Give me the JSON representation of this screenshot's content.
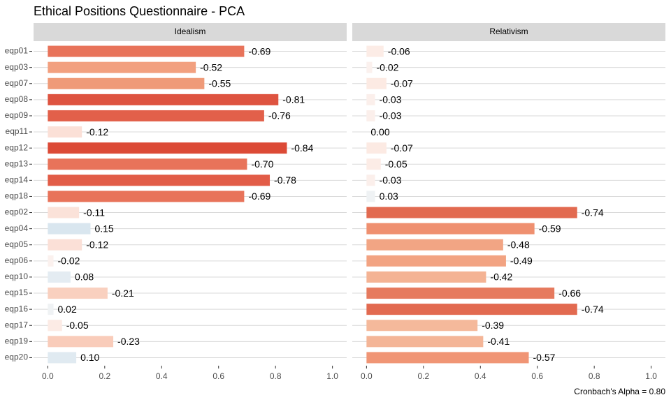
{
  "title": "Ethical Positions Questionnaire - PCA",
  "caption": "Cronbach's Alpha = 0.80",
  "chart_data": {
    "type": "bar",
    "orientation": "horizontal",
    "categories": [
      "eqp01",
      "eqp03",
      "eqp07",
      "eqp08",
      "eqp09",
      "eqp11",
      "eqp12",
      "eqp13",
      "eqp14",
      "eqp18",
      "eqp02",
      "eqp04",
      "eqp05",
      "eqp06",
      "eqp10",
      "eqp15",
      "eqp16",
      "eqp17",
      "eqp19",
      "eqp20"
    ],
    "xlim": [
      -0.05,
      1.05
    ],
    "xticks": [
      {
        "value": 0,
        "label": "0.0"
      },
      {
        "value": 0.2,
        "label": "0.2"
      },
      {
        "value": 0.4,
        "label": "0.4"
      },
      {
        "value": 0.6,
        "label": "0.6"
      },
      {
        "value": 0.8,
        "label": "0.8"
      },
      {
        "value": 1,
        "label": "1.0"
      }
    ],
    "facets": [
      {
        "title": "Idealism",
        "values": [
          0.69,
          0.52,
          0.55,
          0.81,
          0.76,
          0.12,
          0.84,
          0.7,
          0.78,
          0.69,
          0.11,
          0.15,
          0.12,
          0.02,
          0.08,
          0.21,
          0.02,
          0.05,
          0.23,
          0.1
        ],
        "value_labels": [
          "-0.69",
          "-0.52",
          "-0.55",
          "-0.81",
          "-0.76",
          "-0.12",
          "-0.84",
          "-0.70",
          "-0.78",
          "-0.69",
          "-0.11",
          "0.15",
          "-0.12",
          "-0.02",
          "0.08",
          "-0.21",
          "0.02",
          "-0.05",
          "-0.23",
          "0.10"
        ],
        "colors": [
          "#e8735a",
          "#f2a07f",
          "#ef9a78",
          "#de5340",
          "#e2604a",
          "#fbe0d7",
          "#dc4a36",
          "#e8735a",
          "#e25c47",
          "#e8735a",
          "#fbe2d9",
          "#d9e6ef",
          "#fbe0d7",
          "#fbf1ee",
          "#e4ecf2",
          "#f9d0bf",
          "#eff2f4",
          "#fcebe5",
          "#f9ccba",
          "#e0eaf1"
        ]
      },
      {
        "title": "Relativism",
        "values": [
          0.06,
          0.02,
          0.07,
          0.03,
          0.03,
          0.0,
          0.07,
          0.05,
          0.03,
          0.03,
          0.74,
          0.59,
          0.48,
          0.49,
          0.42,
          0.66,
          0.74,
          0.39,
          0.41,
          0.57
        ],
        "value_labels": [
          "-0.06",
          "-0.02",
          "-0.07",
          "-0.03",
          "-0.03",
          "0.00",
          "-0.07",
          "-0.05",
          "-0.03",
          "0.03",
          "-0.74",
          "-0.59",
          "-0.48",
          "-0.49",
          "-0.42",
          "-0.66",
          "-0.74",
          "-0.39",
          "-0.41",
          "-0.57"
        ],
        "colors": [
          "#fcece6",
          "#fbf1ee",
          "#fceae3",
          "#fbefeb",
          "#fbefeb",
          "#f7f7f7",
          "#fceae3",
          "#fcece6",
          "#fbefeb",
          "#eff2f4",
          "#e26a50",
          "#ef9070",
          "#f2a584",
          "#f2a382",
          "#f4b394",
          "#e67a5e",
          "#e26a50",
          "#f5b99b",
          "#f4b597",
          "#f09575"
        ]
      }
    ]
  }
}
